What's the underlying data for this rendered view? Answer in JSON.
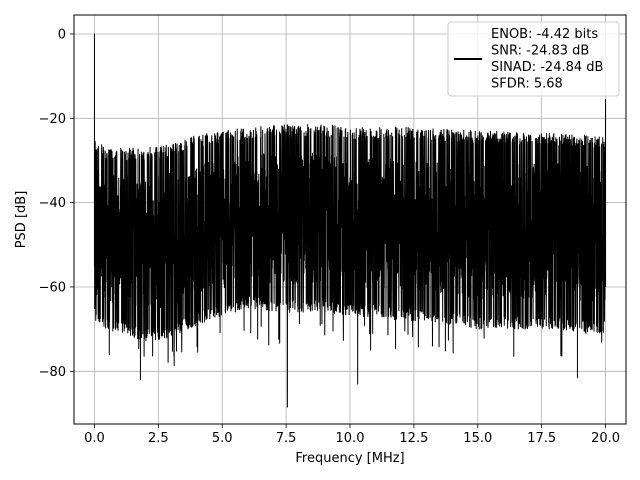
{
  "chart_data": {
    "type": "line",
    "title": "",
    "xlabel": "Frequency [MHz]",
    "ylabel": "PSD [dB]",
    "xlim": [
      -0.8,
      20.8
    ],
    "ylim": [
      -92.5,
      4.5
    ],
    "x_ticks": [
      0.0,
      2.5,
      5.0,
      7.5,
      10.0,
      12.5,
      15.0,
      17.5,
      20.0
    ],
    "x_tick_labels": [
      "0.0",
      "2.5",
      "5.0",
      "7.5",
      "10.0",
      "12.5",
      "15.0",
      "17.5",
      "20.0"
    ],
    "y_ticks": [
      0,
      -20,
      -40,
      -60,
      -80
    ],
    "y_tick_labels": [
      "0",
      "−20",
      "−40",
      "−60",
      "−80"
    ],
    "grid": true,
    "legend_position": "top-right",
    "series": [
      {
        "color": "#000000",
        "envelope": {
          "x": [
            0.0,
            0.5,
            1.0,
            2.0,
            3.0,
            4.0,
            5.0,
            6.0,
            7.0,
            8.0,
            9.0,
            10.0,
            11.0,
            12.0,
            13.0,
            14.0,
            15.0,
            16.0,
            17.0,
            18.0,
            19.0,
            20.0
          ],
          "upper": [
            -25,
            -27,
            -27,
            -27,
            -26,
            -24,
            -23,
            -22,
            -21.5,
            -21.5,
            -21.5,
            -22,
            -22,
            -22,
            -22.5,
            -22.5,
            -23,
            -23,
            -23.5,
            -23.5,
            -24,
            -24
          ],
          "lower": [
            -68,
            -70,
            -71,
            -73,
            -72,
            -69,
            -67,
            -65,
            -66,
            -66,
            -66,
            -67,
            -67,
            -68,
            -68,
            -69,
            -70,
            -70,
            -70,
            -70,
            -71,
            -71
          ]
        },
        "peaks": [
          {
            "x": 0.0,
            "y": 0
          },
          {
            "x": 20.0,
            "y": -15.5
          }
        ],
        "dips": [
          {
            "x": 1.8,
            "y": -82
          },
          {
            "x": 7.55,
            "y": -88.5
          },
          {
            "x": 10.3,
            "y": -83
          },
          {
            "x": 18.9,
            "y": -81.5
          }
        ]
      }
    ],
    "legend": {
      "line_color": "#000000",
      "entries": [
        "ENOB: -4.42 bits",
        "SNR: -24.83 dB",
        "SINAD: -24.84 dB",
        "SFDR: 5.68"
      ]
    }
  }
}
